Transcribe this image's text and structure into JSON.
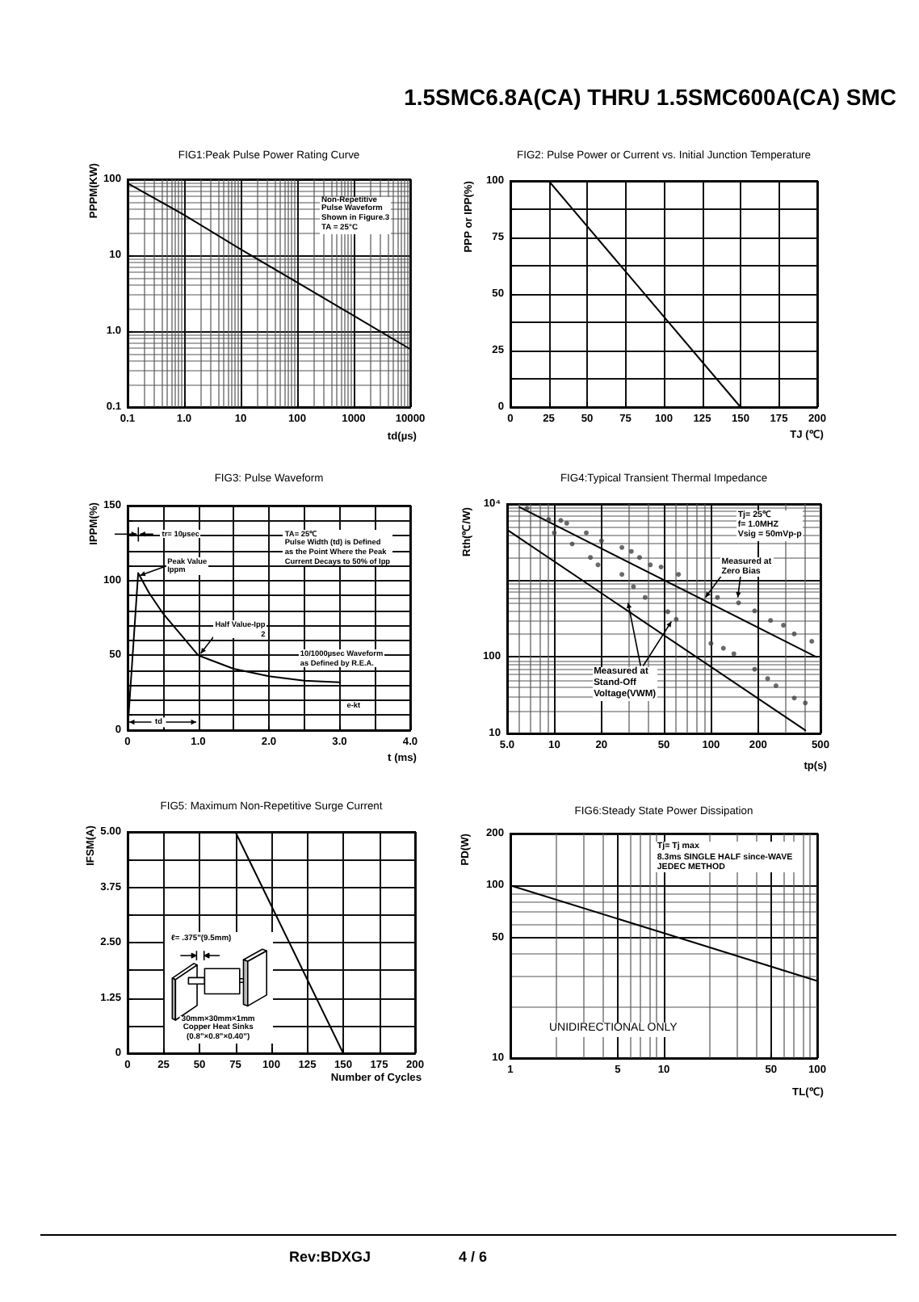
{
  "chart_data": [
    {
      "type": "other",
      "title": "1.5SMC6.8A(CA) THRU 1.5SMC600A(CA) SMC"
    },
    {
      "type": "line",
      "title": "FIG1:Peak Pulse Power Rating Curve",
      "xlabel": "td(µs)",
      "ylabel": "PPPM(KW)",
      "log": "xy",
      "xlim": [
        0.1,
        10000
      ],
      "ylim": [
        0.1,
        100
      ],
      "xticks": [
        0.1,
        {
          "value": 1,
          "label": "1.0"
        },
        10,
        100,
        1000,
        10000
      ],
      "yticks": [
        0.1,
        {
          "value": 1,
          "label": "1.0"
        },
        10,
        100
      ],
      "grid": true,
      "x": [
        0.1,
        1,
        10,
        100,
        1000,
        10000
      ],
      "series": [
        {
          "color": "#000000",
          "values": [
            89,
            34,
            12,
            4.4,
            1.6,
            0.58
          ]
        }
      ],
      "annotations": [
        "Non-Repetitive\nPulse Waveform\nShown in Figure.3\nTA = 25°C"
      ]
    },
    {
      "type": "line",
      "title": "FIG2: Pulse Power or Current vs. Initial Junction Temperature",
      "xlabel": "TJ (℃)",
      "ylabel": "PPP or IPP(%)",
      "xlim": [
        0,
        200
      ],
      "ylim": [
        0,
        100
      ],
      "xticks": [
        0,
        25,
        50,
        75,
        100,
        125,
        150,
        175,
        200
      ],
      "yticks": [
        0,
        {
          "value": 12.5,
          "label": null
        },
        25,
        {
          "value": 37.5,
          "label": null
        },
        50,
        {
          "value": 62.5,
          "label": null
        },
        75,
        {
          "value": 87.5,
          "label": null
        },
        100
      ],
      "grid": true,
      "x": [
        25,
        150
      ],
      "series": [
        {
          "color": "#000000",
          "values": [
            100,
            0
          ]
        }
      ]
    },
    {
      "type": "line",
      "title": "FIG3: Pulse Waveform",
      "xlabel": "t (ms)",
      "ylabel": "IPPM(%)",
      "xlim": [
        0,
        4
      ],
      "ylim": [
        0,
        150
      ],
      "xticks": [
        0,
        {
          "value": 0.5,
          "label": null
        },
        {
          "value": 1,
          "label": "1.0"
        },
        {
          "value": 1.5,
          "label": null
        },
        {
          "value": 2,
          "label": "2.0"
        },
        {
          "value": 2.5,
          "label": null
        },
        {
          "value": 3,
          "label": "3.0"
        },
        {
          "value": 3.5,
          "label": null
        },
        {
          "value": 4,
          "label": "4.0"
        }
      ],
      "yticks": [
        0,
        {
          "value": 10,
          "label": null
        },
        {
          "value": 20,
          "label": null
        },
        {
          "value": 30,
          "label": null
        },
        {
          "value": 40,
          "label": null
        },
        50,
        {
          "value": 60,
          "label": null
        },
        {
          "value": 70,
          "label": null
        },
        {
          "value": 80,
          "label": null
        },
        {
          "value": 90,
          "label": null
        },
        100,
        {
          "value": 110,
          "label": null
        },
        {
          "value": 120,
          "label": null
        },
        {
          "value": 130,
          "label": null
        },
        {
          "value": 140,
          "label": null
        },
        150
      ],
      "grid": true,
      "x": [
        0,
        0.15,
        0.3,
        0.5,
        0.75,
        1,
        1.5,
        2,
        2.5,
        3
      ],
      "series": [
        {
          "color": "#000000",
          "values": [
            0,
            105,
            92,
            78,
            64,
            50,
            41,
            36,
            33,
            32
          ]
        }
      ],
      "annotations": [
        "tr= 10µsec",
        "TA= 25℃\nPulse Width (td) is Defined\nas the Point Where the Peak\nCurrent Decays to 50% of Ipp",
        "Peak Value\nIppm",
        "Half Value-Ipp\n2",
        "10/1000µsec Waveform\nas Defined by R.E.A.",
        "e-kt",
        "td"
      ]
    },
    {
      "type": "line",
      "title": "FIG4:Typical Transient Thermal Impedance",
      "xlabel": "tp(s)",
      "ylabel": "Rth(℃/W)",
      "log": "xy",
      "xlim": [
        5,
        500
      ],
      "ylim": [
        10,
        10000
      ],
      "xticks": [
        {
          "value": 5,
          "label": "5.0"
        },
        10,
        20,
        50,
        100,
        200,
        500
      ],
      "yticks": [
        10,
        100,
        {
          "value": 1000,
          "label": null
        },
        {
          "value": 10000,
          "label": "10⁴"
        }
      ],
      "grid": true,
      "series": [
        {
          "type": "line",
          "color": "#000000",
          "x": [
            6,
            470
          ],
          "values": [
            9100,
            100
          ]
        },
        {
          "type": "line",
          "color": "#000000",
          "x": [
            5,
            400
          ],
          "values": [
            4600,
            11
          ]
        },
        {
          "type": "scatter",
          "marker": "circle",
          "color": "#444444",
          "x": [
            6.7,
            9.2,
            11,
            12,
            16,
            20,
            27,
            31,
            35,
            41,
            48,
            62,
            110,
            150,
            190,
            240,
            290,
            340,
            440
          ],
          "values": [
            8800,
            6300,
            6100,
            5600,
            4200,
            3300,
            2700,
            2400,
            2000,
            1600,
            1500,
            1200,
            600,
            510,
            400,
            300,
            260,
            200,
            160
          ]
        },
        {
          "type": "scatter",
          "marker": "circle",
          "color": "#444444",
          "x": [
            10,
            13,
            17,
            19,
            27,
            32,
            38,
            53,
            60,
            100,
            120,
            140,
            190,
            230,
            260,
            340,
            400
          ],
          "values": [
            4200,
            3000,
            2000,
            1600,
            1200,
            830,
            600,
            390,
            310,
            150,
            130,
            110,
            69,
            52,
            42,
            29,
            25
          ]
        }
      ],
      "annotations": [
        "Tj= 25℃\nf= 1.0MHZ\nVsig = 50mVp-p",
        "Measured at\nZero Bias",
        "Measured at\nStand-Off\nVoltage(VWM)"
      ]
    },
    {
      "type": "line",
      "title": "FIG5: Maximum Non-Repetitive Surge Current",
      "xlabel": "Number of Cycles",
      "ylabel": "IFSM(A)",
      "xlim": [
        0,
        200
      ],
      "ylim": [
        0,
        5
      ],
      "xticks": [
        0,
        25,
        50,
        75,
        100,
        125,
        150,
        175,
        200
      ],
      "yticks": [
        0,
        {
          "value": 0.625,
          "label": null
        },
        1.25,
        {
          "value": 1.875,
          "label": null
        },
        {
          "value": 2.5,
          "label": "2.50"
        },
        {
          "value": 3.125,
          "label": null
        },
        3.75,
        {
          "value": 4.375,
          "label": null
        },
        {
          "value": 5,
          "label": "5.00"
        }
      ],
      "grid": true,
      "x": [
        75,
        150
      ],
      "series": [
        {
          "color": "#000000",
          "values": [
            5,
            0
          ]
        }
      ],
      "annotations": [
        "ℓ= .375\"(9.5mm)",
        "30mm×30mm×1mm\nCopper Heat Sinks\n(0.8\"×0.8\"×0.40\")"
      ]
    },
    {
      "type": "line",
      "title": "FIG6:Steady State Power Dissipation",
      "xlabel": "TL(℃)",
      "ylabel": "PD(W)",
      "log": "xy",
      "xlim": [
        1,
        100
      ],
      "ylim": [
        10,
        200
      ],
      "xticks": [
        1,
        5,
        10,
        50,
        100
      ],
      "yticks": [
        10,
        50,
        100,
        200
      ],
      "grid": true,
      "x": [
        1,
        10,
        100
      ],
      "series": [
        {
          "color": "#000000",
          "values": [
            100,
            53,
            28
          ]
        }
      ],
      "annotations": [
        "Tj= Tj max\n8.3ms SINGLE HALF since-WAVE\nJEDEC METHOD",
        "UNIDIRECTIONAL ONLY"
      ]
    },
    {
      "type": "other",
      "annotations": [
        "Rev:BDXGJ",
        "4 / 6"
      ]
    }
  ]
}
